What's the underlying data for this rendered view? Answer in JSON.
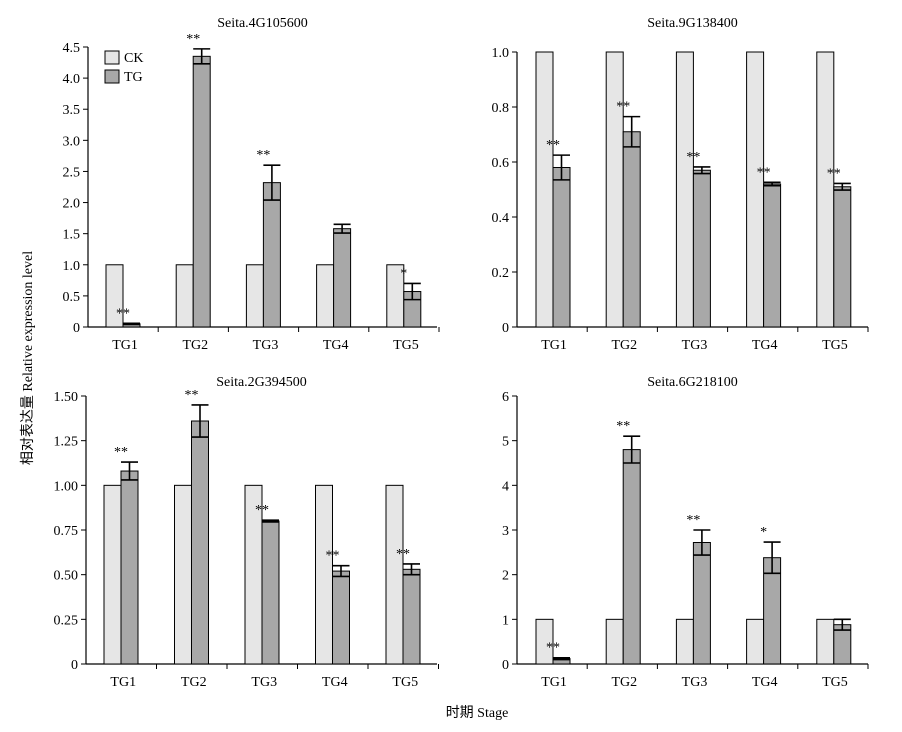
{
  "ylabel": "相对表达量 Relative expression level",
  "xlabel": "时期 Stage",
  "legend": {
    "items": [
      {
        "label": "CK",
        "color": "#e6e6e6"
      },
      {
        "label": "TG",
        "color": "#a8a8a8"
      }
    ]
  },
  "chart_data": [
    {
      "type": "bar",
      "title": "Seita.4G105600",
      "categories": [
        "TG1",
        "TG2",
        "TG3",
        "TG4",
        "TG5"
      ],
      "ylim": [
        0,
        4.5
      ],
      "yticks": [
        "0",
        "0.5",
        "1.0",
        "1.5",
        "2.0",
        "2.5",
        "3.0",
        "3.5",
        "4.0",
        "4.5"
      ],
      "series": [
        {
          "name": "CK",
          "values": [
            1,
            1,
            1,
            1,
            1
          ]
        },
        {
          "name": "TG",
          "values": [
            0.05,
            4.35,
            2.32,
            1.58,
            0.57
          ],
          "errors": [
            0.01,
            0.12,
            0.28,
            0.07,
            0.13
          ]
        }
      ],
      "significance": [
        "**",
        "**",
        "**",
        "",
        "*"
      ],
      "colors": {
        "CK": "#e6e6e6",
        "TG": "#a8a8a8"
      }
    },
    {
      "type": "bar",
      "title": "Seita.9G138400",
      "categories": [
        "TG1",
        "TG2",
        "TG3",
        "TG4",
        "TG5"
      ],
      "ylim": [
        0,
        1.0
      ],
      "yticks": [
        "0",
        "0.2",
        "0.4",
        "0.6",
        "0.8",
        "1.0"
      ],
      "series": [
        {
          "name": "CK",
          "values": [
            1,
            1,
            1,
            1,
            1
          ]
        },
        {
          "name": "TG",
          "values": [
            0.58,
            0.71,
            0.57,
            0.52,
            0.51
          ],
          "errors": [
            0.045,
            0.055,
            0.012,
            0.006,
            0.012
          ]
        }
      ],
      "significance": [
        "**",
        "**",
        "**",
        "**",
        "**"
      ],
      "colors": {
        "CK": "#e6e6e6",
        "TG": "#a8a8a8"
      }
    },
    {
      "type": "bar",
      "title": "Seita.2G394500",
      "categories": [
        "TG1",
        "TG2",
        "TG3",
        "TG4",
        "TG5"
      ],
      "ylim": [
        0,
        1.5
      ],
      "yticks": [
        "0",
        "0.25",
        "0.50",
        "0.75",
        "1.00",
        "1.25",
        "1.50"
      ],
      "series": [
        {
          "name": "CK",
          "values": [
            1,
            1,
            1,
            1,
            1
          ]
        },
        {
          "name": "TG",
          "values": [
            1.08,
            1.36,
            0.8,
            0.52,
            0.53
          ],
          "errors": [
            0.05,
            0.09,
            0.005,
            0.03,
            0.03
          ]
        }
      ],
      "significance": [
        "**",
        "**",
        "**",
        "**",
        "**"
      ],
      "colors": {
        "CK": "#e6e6e6",
        "TG": "#a8a8a8"
      }
    },
    {
      "type": "bar",
      "title": "Seita.6G218100",
      "categories": [
        "TG1",
        "TG2",
        "TG3",
        "TG4",
        "TG5"
      ],
      "ylim": [
        0,
        6
      ],
      "yticks": [
        "0",
        "1",
        "2",
        "3",
        "4",
        "5",
        "6"
      ],
      "series": [
        {
          "name": "CK",
          "values": [
            1,
            1,
            1,
            1,
            1
          ]
        },
        {
          "name": "TG",
          "values": [
            0.12,
            4.8,
            2.72,
            2.38,
            0.88
          ],
          "errors": [
            0.02,
            0.3,
            0.28,
            0.35,
            0.12
          ]
        }
      ],
      "significance": [
        "**",
        "**",
        "**",
        "*",
        ""
      ],
      "colors": {
        "CK": "#e6e6e6",
        "TG": "#a8a8a8"
      }
    }
  ]
}
